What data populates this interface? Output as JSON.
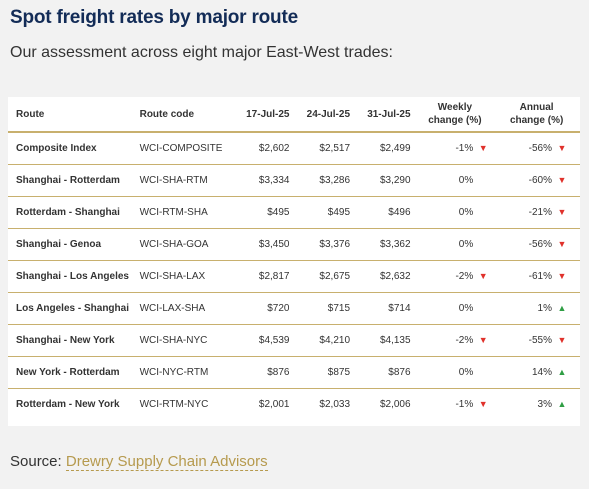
{
  "title": "Spot freight rates by major route",
  "subtitle": "Our assessment across eight major East-West trades:",
  "source": {
    "label": "Source:",
    "link_text": "Drewry Supply Chain Advisors"
  },
  "colors": {
    "title": "#132c57",
    "rule": "#c8b06e",
    "down": "#e0312b",
    "up": "#2f9e44",
    "link": "#b69a4e"
  },
  "chart_data": {
    "type": "table",
    "columns": [
      "Route",
      "Route code",
      "17-Jul-25",
      "24-Jul-25",
      "31-Jul-25",
      "Weekly change (%)",
      "Annual change (%)"
    ],
    "header_lines": {
      "weekly": [
        "Weekly",
        "change (%)"
      ],
      "annual": [
        "Annual",
        "change (%)"
      ]
    },
    "rows": [
      {
        "route": "Composite Index",
        "code": "WCI-COMPOSITE",
        "d1": "$2,602",
        "d2": "$2,517",
        "d3": "$2,499",
        "weekly": "-1%",
        "weekly_dir": "down",
        "annual": "-56%",
        "annual_dir": "down"
      },
      {
        "route": "Shanghai - Rotterdam",
        "code": "WCI-SHA-RTM",
        "d1": "$3,334",
        "d2": "$3,286",
        "d3": "$3,290",
        "weekly": "0%",
        "weekly_dir": "none",
        "annual": "-60%",
        "annual_dir": "down"
      },
      {
        "route": "Rotterdam - Shanghai",
        "code": "WCI-RTM-SHA",
        "d1": "$495",
        "d2": "$495",
        "d3": "$496",
        "weekly": "0%",
        "weekly_dir": "none",
        "annual": "-21%",
        "annual_dir": "down"
      },
      {
        "route": "Shanghai - Genoa",
        "code": "WCI-SHA-GOA",
        "d1": "$3,450",
        "d2": "$3,376",
        "d3": "$3,362",
        "weekly": "0%",
        "weekly_dir": "none",
        "annual": "-56%",
        "annual_dir": "down"
      },
      {
        "route": "Shanghai - Los Angeles",
        "code": "WCI-SHA-LAX",
        "d1": "$2,817",
        "d2": "$2,675",
        "d3": "$2,632",
        "weekly": "-2%",
        "weekly_dir": "down",
        "annual": "-61%",
        "annual_dir": "down"
      },
      {
        "route": "Los Angeles - Shanghai",
        "code": "WCI-LAX-SHA",
        "d1": "$720",
        "d2": "$715",
        "d3": "$714",
        "weekly": "0%",
        "weekly_dir": "none",
        "annual": "1%",
        "annual_dir": "up"
      },
      {
        "route": "Shanghai - New York",
        "code": "WCI-SHA-NYC",
        "d1": "$4,539",
        "d2": "$4,210",
        "d3": "$4,135",
        "weekly": "-2%",
        "weekly_dir": "down",
        "annual": "-55%",
        "annual_dir": "down"
      },
      {
        "route": "New York - Rotterdam",
        "code": "WCI-NYC-RTM",
        "d1": "$876",
        "d2": "$875",
        "d3": "$876",
        "weekly": "0%",
        "weekly_dir": "none",
        "annual": "14%",
        "annual_dir": "up"
      },
      {
        "route": "Rotterdam - New York",
        "code": "WCI-RTM-NYC",
        "d1": "$2,001",
        "d2": "$2,033",
        "d3": "$2,006",
        "weekly": "-1%",
        "weekly_dir": "down",
        "annual": "3%",
        "annual_dir": "up"
      }
    ]
  }
}
